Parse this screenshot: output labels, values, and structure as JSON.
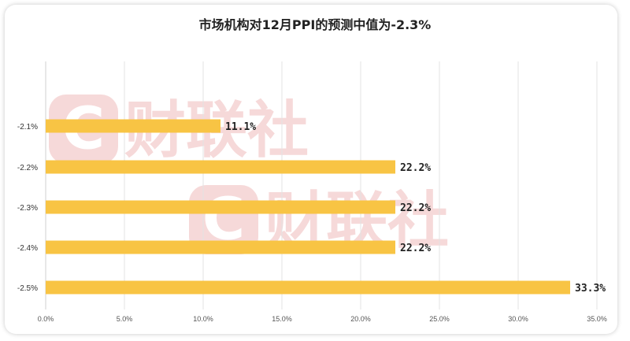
{
  "title": "市场机构对12月PPI的预测中值为-2.3%",
  "watermark": {
    "text": "财联社",
    "logo_letter": "C",
    "color": "#f6d9d9"
  },
  "colors": {
    "bar": "#f8c444",
    "grid": "#e3e3e3"
  },
  "chart_data": {
    "type": "bar",
    "orientation": "horizontal",
    "title": "市场机构对12月PPI的预测中值为-2.3%",
    "categories": [
      "-2.1%",
      "-2.2%",
      "-2.3%",
      "-2.4%",
      "-2.5%"
    ],
    "values": [
      11.1,
      22.2,
      22.2,
      22.2,
      33.3
    ],
    "data_labels": [
      "11.1%",
      "22.2%",
      "22.2%",
      "22.2%",
      "33.3%"
    ],
    "xlim": [
      0,
      35
    ],
    "xticks": [
      0,
      5,
      10,
      15,
      20,
      25,
      30,
      35
    ],
    "xtick_labels": [
      "0.0%",
      "5.0%",
      "10.0%",
      "15.0%",
      "20.0%",
      "25.0%",
      "30.0%",
      "35.0%"
    ],
    "grid": "vertical",
    "legend": "none"
  }
}
